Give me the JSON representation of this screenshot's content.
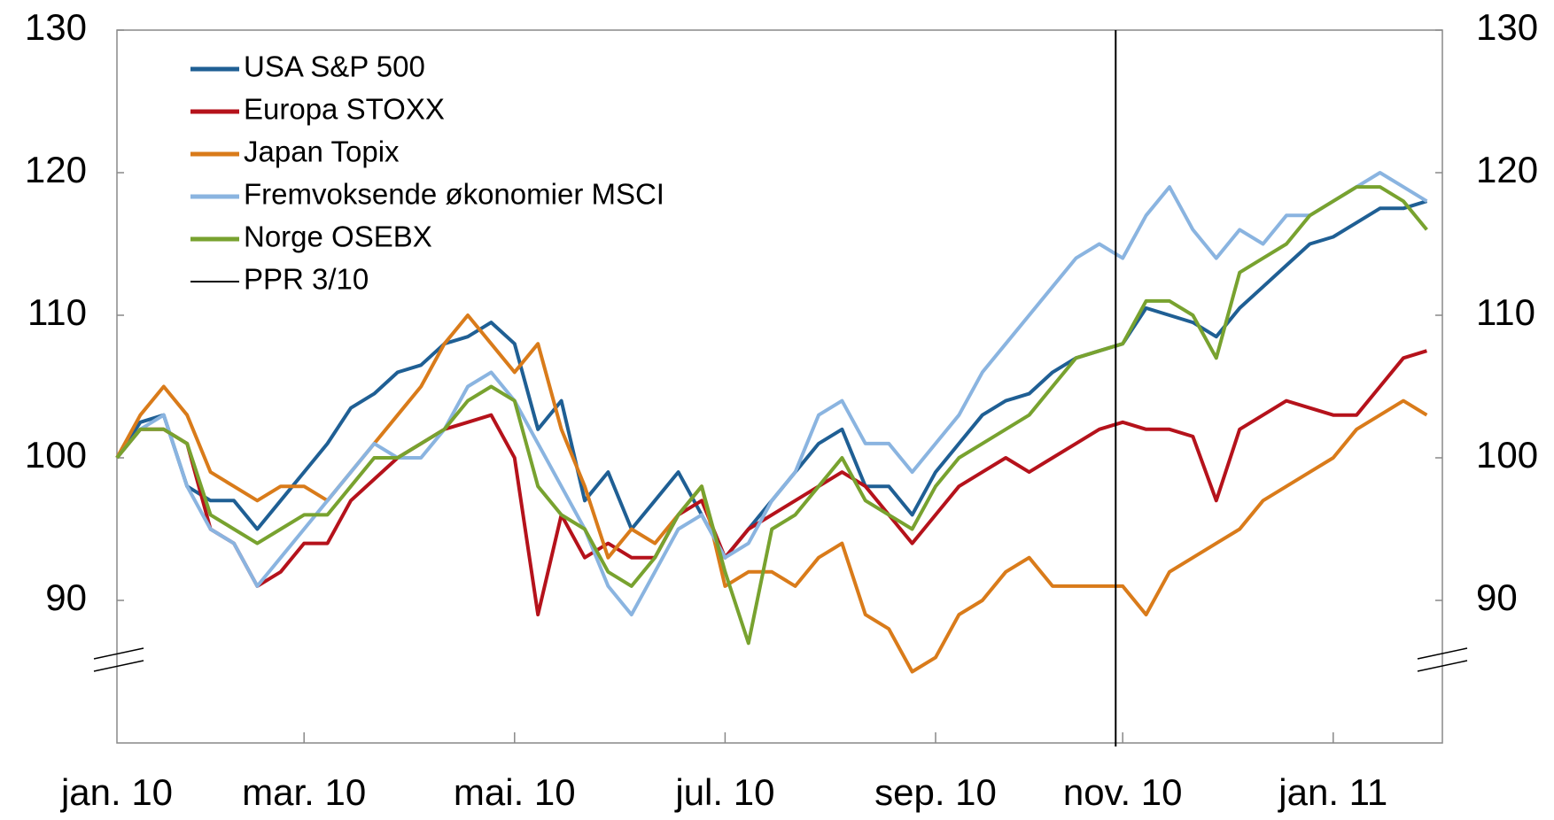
{
  "chart_data": {
    "type": "line",
    "categories": [
      "jan. 10",
      null,
      null,
      null,
      null,
      null,
      null,
      null,
      "mar. 10",
      null,
      null,
      null,
      null,
      null,
      null,
      null,
      null,
      "mai. 10",
      null,
      null,
      null,
      null,
      null,
      null,
      null,
      null,
      "jul. 10",
      null,
      null,
      null,
      null,
      null,
      null,
      null,
      null,
      "sep. 10",
      null,
      null,
      null,
      null,
      null,
      null,
      null,
      "nov. 10",
      null,
      null,
      null,
      null,
      null,
      null,
      null,
      null,
      "jan. 11",
      null,
      null,
      null,
      null
    ],
    "series": [
      {
        "name": "USA S&P 500",
        "color": "#1f5f94",
        "values": [
          100,
          102.5,
          103,
          98,
          97,
          97,
          95,
          97,
          99,
          101,
          103.5,
          104.5,
          106,
          106.5,
          108,
          108.5,
          109.5,
          108,
          102,
          104,
          97,
          99,
          95,
          97,
          99,
          96,
          93,
          95,
          97,
          99,
          101,
          102,
          98,
          98,
          96,
          99,
          101,
          103,
          104,
          104.5,
          106,
          107,
          107.5,
          108,
          110.5,
          110,
          109.5,
          108.5,
          110.5,
          112,
          113.5,
          115,
          115.5,
          116.5,
          117.5,
          117.5,
          118
        ]
      },
      {
        "name": "Europa STOXX",
        "color": "#b5121b",
        "values": [
          100,
          102,
          102,
          101,
          95,
          94,
          91,
          92,
          94,
          94,
          97,
          98.5,
          100,
          101,
          102,
          102.5,
          103,
          100,
          89,
          96,
          93,
          94,
          93,
          93,
          96,
          97,
          93,
          95,
          96,
          97,
          98,
          99,
          98,
          96,
          94,
          96,
          98,
          99,
          100,
          99,
          100,
          101,
          102,
          102.5,
          102,
          102,
          101.5,
          97,
          102,
          103,
          104,
          103.5,
          103,
          103,
          105,
          107,
          107.5
        ]
      },
      {
        "name": "Japan Topix",
        "color": "#d97b1a",
        "values": [
          100,
          103,
          105,
          103,
          99,
          98,
          97,
          98,
          98,
          97,
          99,
          101,
          103,
          105,
          108,
          110,
          108,
          106,
          108,
          102,
          98,
          93,
          95,
          94,
          96,
          98,
          91,
          92,
          92,
          91,
          93,
          94,
          89,
          88,
          85,
          86,
          89,
          90,
          92,
          93,
          91,
          91,
          91,
          91,
          89,
          92,
          93,
          94,
          95,
          97,
          98,
          99,
          100,
          102,
          103,
          104,
          103
        ]
      },
      {
        "name": "Fremvoksende økonomier MSCI",
        "color": "#8ab4e0",
        "values": [
          100,
          102,
          103,
          98,
          95,
          94,
          91,
          93,
          95,
          97,
          99,
          101,
          100,
          100,
          102,
          105,
          106,
          104,
          101,
          98,
          95,
          91,
          89,
          92,
          95,
          96,
          93,
          94,
          97,
          99,
          103,
          104,
          101,
          101,
          99,
          101,
          103,
          106,
          108,
          110,
          112,
          114,
          115,
          114,
          117,
          119,
          116,
          114,
          116,
          115,
          117,
          117,
          118,
          119,
          120,
          119,
          118
        ]
      },
      {
        "name": "Norge OSEBX",
        "color": "#78a22f",
        "values": [
          100,
          102,
          102,
          101,
          96,
          95,
          94,
          95,
          96,
          96,
          98,
          100,
          100,
          101,
          102,
          104,
          105,
          104,
          98,
          96,
          95,
          92,
          91,
          93,
          96,
          98,
          92,
          87,
          95,
          96,
          98,
          100,
          97,
          96,
          95,
          98,
          100,
          101,
          102,
          103,
          105,
          107,
          107.5,
          108,
          111,
          111,
          110,
          107,
          113,
          114,
          115,
          117,
          118,
          119,
          119,
          118,
          116
        ]
      }
    ],
    "vline": {
      "name": "PPR 3/10",
      "color": "#000000",
      "at": 42.7
    },
    "ylim": [
      80,
      130
    ],
    "yticks": [
      90,
      100,
      110,
      120,
      130
    ],
    "y2lim": [
      80,
      130
    ],
    "y2ticks": [
      90,
      100,
      110,
      120,
      130
    ],
    "grid": false,
    "legend": "top-left"
  }
}
